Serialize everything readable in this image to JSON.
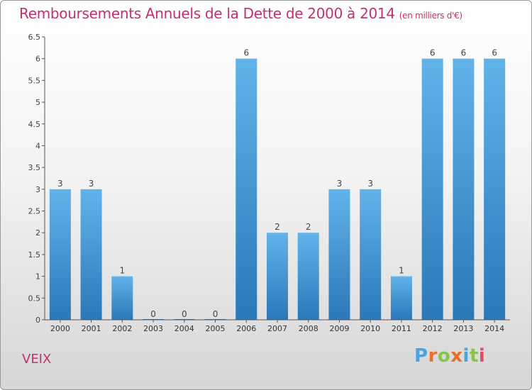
{
  "header": {
    "title": "Remboursements Annuels de la Dette de 2000 à 2014",
    "unit": "(en milliers d'€)"
  },
  "footer": {
    "commune": "VEIX",
    "brand": "Proxiti",
    "brand_colors": [
      "#4aa3df",
      "#e8702a",
      "#8bc34a",
      "#e8702a",
      "#4aa3df",
      "#8bc34a",
      "#e84a5f"
    ]
  },
  "colors": {
    "title": "#c2306e",
    "bar_top": "#62b3ea",
    "bar_bottom": "#2a78b8",
    "axis": "#555555"
  },
  "chart_data": {
    "type": "bar",
    "title": "Remboursements Annuels de la Dette de 2000 à 2014",
    "xlabel": "",
    "ylabel": "",
    "categories": [
      "2000",
      "2001",
      "2002",
      "2003",
      "2004",
      "2005",
      "2006",
      "2007",
      "2008",
      "2009",
      "2010",
      "2011",
      "2012",
      "2013",
      "2014"
    ],
    "values": [
      3,
      3,
      1,
      0,
      0,
      0,
      6,
      2,
      2,
      3,
      3,
      1,
      6,
      6,
      6
    ],
    "ylim": [
      0,
      6.5
    ],
    "yticks": [
      "0",
      "0.5",
      "1",
      "1.5",
      "2",
      "2.5",
      "3",
      "3.5",
      "4",
      "4.5",
      "5",
      "5.5",
      "6",
      "6.5"
    ],
    "grid": false,
    "data_labels": true
  }
}
